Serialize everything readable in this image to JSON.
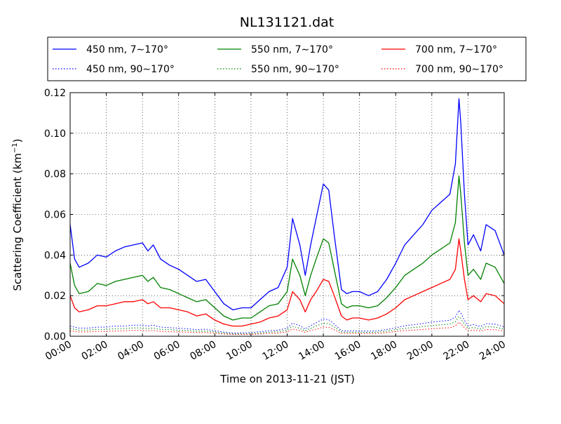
{
  "chart_data": {
    "type": "line",
    "title": "NL131121.dat",
    "xlabel": "Time on 2013-11-21 (JST)",
    "ylabel_main": "Scattering Coefficient (km",
    "ylabel_sup": "−1",
    "ylabel_end": ")",
    "x_unit": "hour of day (JST)",
    "xlim": [
      0,
      24
    ],
    "ylim": [
      0,
      0.12
    ],
    "grid": true,
    "legend_position": "top, outside plot (3 columns)",
    "x_ticks": [
      0,
      2,
      4,
      6,
      8,
      10,
      12,
      14,
      16,
      18,
      20,
      22,
      24
    ],
    "x_tick_labels": [
      "00:00",
      "02:00",
      "04:00",
      "06:00",
      "08:00",
      "10:00",
      "12:00",
      "14:00",
      "16:00",
      "18:00",
      "20:00",
      "22:00",
      "24:00"
    ],
    "y_ticks": [
      0,
      0.02,
      0.04,
      0.06,
      0.08,
      0.1,
      0.12
    ],
    "y_tick_labels": [
      "0.00",
      "0.02",
      "0.04",
      "0.06",
      "0.08",
      "0.10",
      "0.12"
    ],
    "x": [
      0,
      0.25,
      0.5,
      1,
      1.5,
      2,
      2.5,
      3,
      3.5,
      4,
      4.3,
      4.6,
      5,
      5.5,
      6,
      6.5,
      7,
      7.5,
      8,
      8.5,
      9,
      9.5,
      10,
      10.5,
      11,
      11.5,
      12,
      12.3,
      12.7,
      13,
      13.3,
      13.6,
      14,
      14.3,
      14.6,
      15,
      15.3,
      15.6,
      16,
      16.5,
      17,
      17.5,
      18,
      18.5,
      19,
      19.5,
      20,
      20.5,
      21,
      21.3,
      21.5,
      21.6,
      21.8,
      22,
      22.3,
      22.7,
      23,
      23.5,
      24
    ],
    "series": [
      {
        "name": "450 nm, 7∼170°",
        "color": "#0000ff",
        "dash": "solid",
        "values": [
          0.055,
          0.038,
          0.034,
          0.036,
          0.04,
          0.039,
          0.042,
          0.044,
          0.045,
          0.046,
          0.042,
          0.045,
          0.038,
          0.035,
          0.033,
          0.03,
          0.027,
          0.028,
          0.022,
          0.016,
          0.013,
          0.014,
          0.014,
          0.018,
          0.022,
          0.024,
          0.034,
          0.058,
          0.045,
          0.03,
          0.045,
          0.058,
          0.075,
          0.072,
          0.05,
          0.023,
          0.021,
          0.022,
          0.022,
          0.02,
          0.022,
          0.028,
          0.036,
          0.045,
          0.05,
          0.055,
          0.062,
          0.066,
          0.07,
          0.085,
          0.117,
          0.105,
          0.07,
          0.045,
          0.05,
          0.042,
          0.055,
          0.052,
          0.04
        ]
      },
      {
        "name": "550 nm, 7∼170°",
        "color": "#008000",
        "dash": "solid",
        "values": [
          0.036,
          0.025,
          0.021,
          0.022,
          0.026,
          0.025,
          0.027,
          0.028,
          0.029,
          0.03,
          0.027,
          0.029,
          0.024,
          0.023,
          0.021,
          0.019,
          0.017,
          0.018,
          0.014,
          0.01,
          0.008,
          0.009,
          0.009,
          0.012,
          0.015,
          0.016,
          0.022,
          0.038,
          0.03,
          0.02,
          0.03,
          0.038,
          0.048,
          0.046,
          0.033,
          0.016,
          0.014,
          0.015,
          0.015,
          0.014,
          0.015,
          0.019,
          0.024,
          0.03,
          0.033,
          0.036,
          0.04,
          0.043,
          0.046,
          0.056,
          0.079,
          0.07,
          0.046,
          0.03,
          0.033,
          0.028,
          0.036,
          0.034,
          0.026
        ]
      },
      {
        "name": "700 nm, 7∼170°",
        "color": "#ff0000",
        "dash": "solid",
        "values": [
          0.02,
          0.014,
          0.012,
          0.013,
          0.015,
          0.015,
          0.016,
          0.017,
          0.017,
          0.018,
          0.016,
          0.017,
          0.014,
          0.014,
          0.013,
          0.012,
          0.01,
          0.011,
          0.008,
          0.006,
          0.005,
          0.005,
          0.006,
          0.007,
          0.009,
          0.01,
          0.013,
          0.022,
          0.018,
          0.012,
          0.018,
          0.022,
          0.028,
          0.027,
          0.02,
          0.01,
          0.008,
          0.009,
          0.009,
          0.008,
          0.009,
          0.011,
          0.014,
          0.018,
          0.02,
          0.022,
          0.024,
          0.026,
          0.028,
          0.033,
          0.048,
          0.042,
          0.028,
          0.018,
          0.02,
          0.017,
          0.021,
          0.02,
          0.016
        ]
      },
      {
        "name": "450 nm, 90∼170°",
        "color": "#0000ff",
        "dash": "dotted",
        "values": [
          0.005,
          0.0045,
          0.004,
          0.004,
          0.0045,
          0.0045,
          0.005,
          0.005,
          0.0055,
          0.0055,
          0.005,
          0.0055,
          0.0045,
          0.0042,
          0.004,
          0.0037,
          0.0033,
          0.0035,
          0.0028,
          0.002,
          0.0016,
          0.0017,
          0.0018,
          0.0022,
          0.0027,
          0.003,
          0.004,
          0.0065,
          0.0052,
          0.0036,
          0.0052,
          0.0066,
          0.0085,
          0.0082,
          0.006,
          0.0028,
          0.0026,
          0.0027,
          0.0027,
          0.0025,
          0.0027,
          0.0033,
          0.0042,
          0.0052,
          0.0057,
          0.0063,
          0.007,
          0.0074,
          0.0079,
          0.0095,
          0.0128,
          0.0115,
          0.0079,
          0.0052,
          0.0057,
          0.0048,
          0.0062,
          0.0059,
          0.0046
        ]
      },
      {
        "name": "550 nm, 90∼170°",
        "color": "#008000",
        "dash": "dotted",
        "values": [
          0.0038,
          0.0034,
          0.003,
          0.003,
          0.0034,
          0.0034,
          0.0037,
          0.0038,
          0.0041,
          0.0041,
          0.0037,
          0.0041,
          0.0034,
          0.0032,
          0.003,
          0.0028,
          0.0025,
          0.0026,
          0.0021,
          0.0015,
          0.0012,
          0.0013,
          0.0013,
          0.0016,
          0.002,
          0.0022,
          0.003,
          0.0049,
          0.0039,
          0.0027,
          0.0039,
          0.005,
          0.0064,
          0.0062,
          0.0045,
          0.0021,
          0.002,
          0.002,
          0.002,
          0.0019,
          0.002,
          0.0025,
          0.0032,
          0.0039,
          0.0043,
          0.0047,
          0.0053,
          0.0056,
          0.006,
          0.0072,
          0.0097,
          0.0087,
          0.006,
          0.0039,
          0.0043,
          0.0036,
          0.0047,
          0.0045,
          0.0035
        ]
      },
      {
        "name": "700 nm, 90∼170°",
        "color": "#ff0000",
        "dash": "dotted",
        "values": [
          0.0027,
          0.0024,
          0.0021,
          0.0021,
          0.0024,
          0.0024,
          0.0026,
          0.0027,
          0.0029,
          0.0029,
          0.0026,
          0.0029,
          0.0024,
          0.0022,
          0.0021,
          0.002,
          0.0018,
          0.0018,
          0.0015,
          0.0011,
          0.0009,
          0.0009,
          0.0009,
          0.0011,
          0.0014,
          0.0016,
          0.0021,
          0.0035,
          0.0028,
          0.0019,
          0.0028,
          0.0035,
          0.0045,
          0.0044,
          0.0032,
          0.0015,
          0.0014,
          0.0014,
          0.0014,
          0.0013,
          0.0014,
          0.0018,
          0.0023,
          0.0028,
          0.003,
          0.0033,
          0.0037,
          0.004,
          0.0042,
          0.0051,
          0.0069,
          0.0062,
          0.0042,
          0.0028,
          0.003,
          0.0026,
          0.0033,
          0.0032,
          0.0025
        ]
      }
    ]
  }
}
